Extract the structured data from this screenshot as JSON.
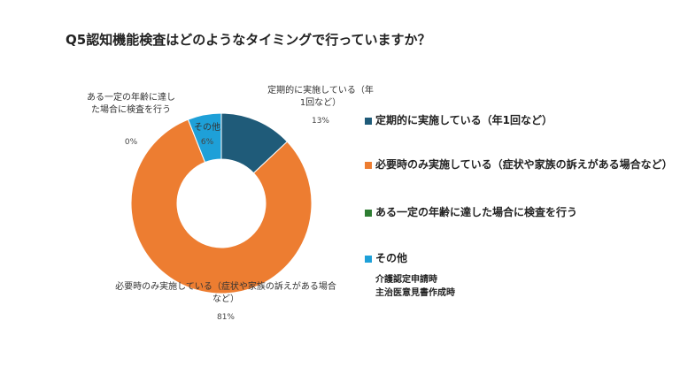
{
  "chart_data": {
    "type": "donut",
    "title": "Q5認知機能検査はどのようなタイミングで行っていますか？",
    "categories": [
      "定期的に実施している（年1回など）",
      "必要時のみ実施している（症状や家族の訴えがある場合など）",
      "ある一定の年齢に達した場合に検査を行う",
      "その他"
    ],
    "values": [
      13,
      81,
      0,
      6
    ],
    "value_labels": [
      "13%",
      "81%",
      "0%",
      "6%"
    ],
    "colors": [
      "#1f5b79",
      "#ed7d31",
      "#2e7d32",
      "#1ea0d8"
    ],
    "annotations": [
      "介護認定申請時",
      "主治医意見書作成時"
    ]
  }
}
